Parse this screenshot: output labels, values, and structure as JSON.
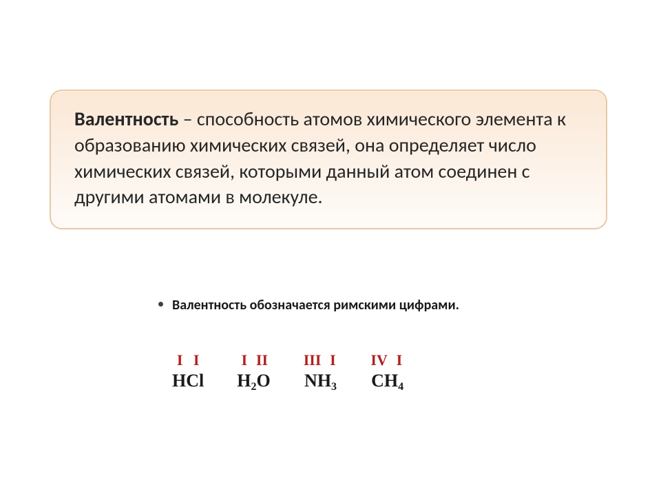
{
  "definition": {
    "term": "Валентность",
    "body": " – способность атомов химического элемента к образованию химических связей, она определяет число химических связей, которыми данный атом соединен с другими атомами в молекуле.",
    "box_border_color": "#e8c9a4",
    "box_bg_top": "#fce8d6",
    "box_bg_bottom": "#fefbf8",
    "text_color": "#262626",
    "fontsize": 28
  },
  "note": {
    "text": "Валентность обозначается римскими цифрами.",
    "fontsize": 20,
    "color": "#1a1a1a"
  },
  "molecules": [
    {
      "valences": [
        "I",
        "I"
      ],
      "formula_html": "HCl"
    },
    {
      "valences": [
        "I",
        "II"
      ],
      "formula_html": "H<sub>2</sub>O"
    },
    {
      "valences": [
        "III",
        "I"
      ],
      "formula_html": "NH<sub>3</sub>"
    },
    {
      "valences": [
        "IV",
        "I"
      ],
      "formula_html": "CH<sub>4</sub>"
    }
  ],
  "styles": {
    "valence_color": "#b02020",
    "formula_color": "#1a1a1a",
    "valence_fontsize": 22,
    "formula_fontsize": 26
  }
}
